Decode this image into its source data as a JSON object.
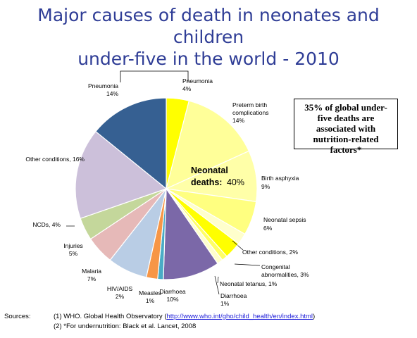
{
  "header": {
    "title_line1": "Major causes of death in neonates and children",
    "title_line2": "under-five in the world - 2010"
  },
  "callout": {
    "line1": "35% of global under-",
    "line2": "five deaths are",
    "line3": "associated with",
    "line4": "nutrition-related",
    "line5": "factors*"
  },
  "neonatal_label": {
    "line1": "Neonatal",
    "line2_bold": "deaths:",
    "line2_value": "40%"
  },
  "sources": {
    "label": "Sources:",
    "line1_prefix": "(1) WHO. Global Health Observatory (",
    "line1_link": "http://www.who.int/gho/child_health/en/index.html",
    "line1_suffix": ")",
    "line2": "(2) *For undernutrition: Black et al. Lancet, 2008"
  },
  "chart_data": {
    "type": "pie",
    "title": "Major causes of death in neonates and children under-five in the world - 2010",
    "start": "Pneumonia (neonatal) at 12 o'clock, proceeding clockwise",
    "slices": [
      {
        "name": "Pneumonia",
        "value": 4,
        "color": "#ffff00",
        "group": "neonatal",
        "label": [
          "Pneumonia",
          "4%"
        ]
      },
      {
        "name": "Preterm birth complications",
        "value": 14,
        "color": "#ffff99",
        "group": "neonatal",
        "label": [
          "Preterm birth",
          "complications",
          "14%"
        ]
      },
      {
        "name": "Birth asphyxia",
        "value": 9,
        "color": "#ffffa8",
        "group": "neonatal",
        "label": [
          "Birth asphyxia",
          "9%"
        ]
      },
      {
        "name": "Neonatal sepsis",
        "value": 6,
        "color": "#ffff80",
        "group": "neonatal",
        "label": [
          "Neonatal sepsis",
          "6%"
        ]
      },
      {
        "name": "Other conditions",
        "value": 2,
        "color": "#ffffcc",
        "group": "neonatal",
        "label": [
          "Other conditions,  2%"
        ]
      },
      {
        "name": "Congenital abnormalities",
        "value": 3,
        "color": "#ffff00",
        "group": "neonatal",
        "label": [
          "Congenital",
          "abnormalities, 3%"
        ]
      },
      {
        "name": "Neonatal tetanus",
        "value": 1,
        "color": "#ffff66",
        "group": "neonatal",
        "label": [
          "Neonatal tetanus, 1%"
        ]
      },
      {
        "name": "Diarrhoea",
        "value": 1,
        "color": "#ffffcc",
        "group": "neonatal",
        "label": [
          "Diarrhoea",
          "1%"
        ]
      },
      {
        "name": "Diarrhoea",
        "value": 10,
        "color": "#7b68a8",
        "group": "postneonatal",
        "label": [
          "Diarrhoea",
          "10%"
        ]
      },
      {
        "name": "Measles",
        "value": 1,
        "color": "#4aacc6",
        "group": "postneonatal",
        "label": [
          "Measles",
          "1%"
        ]
      },
      {
        "name": "HIV/AIDS",
        "value": 2,
        "color": "#f79646",
        "group": "postneonatal",
        "label": [
          "HIV/AIDS",
          "2%"
        ]
      },
      {
        "name": "Malaria",
        "value": 7,
        "color": "#b9cde5",
        "group": "postneonatal",
        "label": [
          "Malaria",
          "7%"
        ]
      },
      {
        "name": "Injuries",
        "value": 5,
        "color": "#e6b9b8",
        "group": "postneonatal",
        "label": [
          "Injuries",
          "5%"
        ]
      },
      {
        "name": "NCDs",
        "value": 4,
        "color": "#c4d79b",
        "group": "postneonatal",
        "label": [
          "NCDs, 4%"
        ]
      },
      {
        "name": "Other conditions",
        "value": 16,
        "color": "#ccc0da",
        "group": "postneonatal",
        "label": [
          "Other conditions, 16%"
        ]
      },
      {
        "name": "Pneumonia",
        "value": 14,
        "color": "#366092",
        "group": "postneonatal",
        "label": [
          "Pneumonia",
          "14%"
        ]
      }
    ],
    "annotations": [
      "Neonatal deaths: 40%"
    ]
  }
}
